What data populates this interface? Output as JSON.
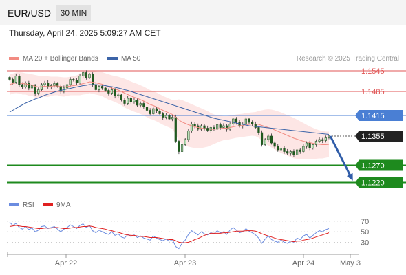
{
  "header": {
    "symbol": "EUR/USD",
    "timeframe": "30 MIN",
    "datetime": "Thursday, April 24, 2025 5:09:27 AM CET"
  },
  "legend": {
    "ma20_label": "MA 20 + Bollinger Bands",
    "ma50_label": "MA 50",
    "credit": "Research © 2025 Trading Central",
    "rsi_label": "RSI",
    "rsi_ma_label": "9MA"
  },
  "colors": {
    "ma20": "#f28b82",
    "band_fill": "#fde2e0",
    "ma50": "#3c64a8",
    "resistance": "#e05555",
    "pivot": "#4a7fd4",
    "support": "#1e8a1e",
    "current": "#222222",
    "rsi": "#6b8ce0",
    "rsi_ma": "#e02020",
    "arrow": "#2f5ca8"
  },
  "chart_data": [
    {
      "type": "candlestick",
      "price_range": [
        1.1175,
        1.1575
      ],
      "x_ticks": [
        "Apr 22",
        "Apr 23",
        "Apr 24",
        "May 3"
      ],
      "levels": [
        {
          "name": "resistance-2",
          "value": 1.1545,
          "label": "1.1545",
          "style": "resistance"
        },
        {
          "name": "resistance-1",
          "value": 1.1485,
          "label": "1.1485",
          "style": "resistance"
        },
        {
          "name": "pivot",
          "value": 1.1415,
          "label": "1.1415",
          "style": "pivot"
        },
        {
          "name": "current-price",
          "value": 1.1355,
          "label": "1.1355",
          "style": "current"
        },
        {
          "name": "support-1",
          "value": 1.127,
          "label": "1.1270",
          "style": "support"
        },
        {
          "name": "support-2",
          "value": 1.122,
          "label": "1.1220",
          "style": "support"
        }
      ],
      "close": [
        1.152,
        1.1512,
        1.153,
        1.1505,
        1.1498,
        1.151,
        1.1495,
        1.1502,
        1.148,
        1.149,
        1.1505,
        1.151,
        1.1498,
        1.1502,
        1.1508,
        1.15,
        1.1485,
        1.1495,
        1.1505,
        1.152,
        1.1518,
        1.151,
        1.153,
        1.154,
        1.1525,
        1.1535,
        1.1505,
        1.149,
        1.15,
        1.1495,
        1.1488,
        1.148,
        1.149,
        1.1472,
        1.1475,
        1.146,
        1.145,
        1.1465,
        1.1455,
        1.146,
        1.1445,
        1.145,
        1.144,
        1.143,
        1.142,
        1.1435,
        1.1428,
        1.142,
        1.141,
        1.1415,
        1.1405,
        1.141,
        1.134,
        1.131,
        1.133,
        1.1345,
        1.137,
        1.139,
        1.1385,
        1.1375,
        1.1385,
        1.1378,
        1.1372,
        1.138,
        1.1375,
        1.1388,
        1.138,
        1.1385,
        1.1375,
        1.139,
        1.1405,
        1.1395,
        1.1385,
        1.139,
        1.1405,
        1.1395,
        1.139,
        1.138,
        1.1365,
        1.133,
        1.1345,
        1.1355,
        1.1335,
        1.1325,
        1.1315,
        1.132,
        1.131,
        1.1305,
        1.131,
        1.13,
        1.1315,
        1.131,
        1.1325,
        1.1335,
        1.132,
        1.133,
        1.134,
        1.1345,
        1.1342,
        1.135,
        1.1355
      ],
      "ma20": [
        1.1505,
        1.1508,
        1.151,
        1.151,
        1.1508,
        1.1507,
        1.1505,
        1.1504,
        1.15,
        1.1498,
        1.1499,
        1.15,
        1.1499,
        1.15,
        1.1501,
        1.1501,
        1.1499,
        1.1498,
        1.1499,
        1.1501,
        1.1502,
        1.1503,
        1.1505,
        1.1508,
        1.151,
        1.1513,
        1.1512,
        1.151,
        1.1508,
        1.1506,
        1.1502,
        1.1498,
        1.1495,
        1.1492,
        1.1489,
        1.1485,
        1.148,
        1.1476,
        1.1472,
        1.1468,
        1.1465,
        1.1461,
        1.1457,
        1.1452,
        1.1447,
        1.1444,
        1.144,
        1.1435,
        1.143,
        1.1426,
        1.1422,
        1.1418,
        1.141,
        1.1402,
        1.1396,
        1.1392,
        1.1388,
        1.1385,
        1.1382,
        1.138,
        1.1378,
        1.1377,
        1.1376,
        1.1375,
        1.1375,
        1.1376,
        1.1377,
        1.1378,
        1.1378,
        1.138,
        1.1382,
        1.1384,
        1.1385,
        1.1386,
        1.1388,
        1.1389,
        1.139,
        1.139,
        1.1389,
        1.1386,
        1.1383,
        1.138,
        1.1377,
        1.1373,
        1.1369,
        1.1365,
        1.1361,
        1.1357,
        1.1353,
        1.1349,
        1.1346,
        1.1343,
        1.134,
        1.1338,
        1.1336,
        1.1334,
        1.1332,
        1.1331,
        1.133,
        1.133,
        1.1331
      ],
      "bb_upper": [
        1.1535,
        1.1537,
        1.154,
        1.1541,
        1.154,
        1.1538,
        1.1537,
        1.1535,
        1.1533,
        1.1531,
        1.153,
        1.153,
        1.1529,
        1.1528,
        1.1528,
        1.1528,
        1.1527,
        1.1526,
        1.1526,
        1.1528,
        1.153,
        1.1532,
        1.1536,
        1.154,
        1.1543,
        1.1546,
        1.1546,
        1.1544,
        1.1542,
        1.1541,
        1.1538,
        1.1535,
        1.1532,
        1.153,
        1.1528,
        1.1525,
        1.1522,
        1.1518,
        1.1514,
        1.151,
        1.1507,
        1.1503,
        1.1499,
        1.1494,
        1.1489,
        1.1486,
        1.1482,
        1.1477,
        1.1472,
        1.1468,
        1.1464,
        1.146,
        1.146,
        1.1462,
        1.146,
        1.1456,
        1.1452,
        1.1448,
        1.1444,
        1.144,
        1.1436,
        1.1432,
        1.1428,
        1.1422,
        1.1418,
        1.1416,
        1.1414,
        1.1413,
        1.1413,
        1.1414,
        1.1416,
        1.1418,
        1.1419,
        1.142,
        1.1422,
        1.1423,
        1.1424,
        1.1425,
        1.1428,
        1.143,
        1.1432,
        1.1433,
        1.1432,
        1.143,
        1.1427,
        1.1424,
        1.142,
        1.1416,
        1.1412,
        1.1408,
        1.1403,
        1.1398,
        1.1393,
        1.1388,
        1.1383,
        1.1379,
        1.1375,
        1.1372,
        1.137,
        1.1368,
        1.1368
      ],
      "bb_lower": [
        1.1475,
        1.1479,
        1.148,
        1.1479,
        1.1476,
        1.1476,
        1.1473,
        1.1473,
        1.1467,
        1.1465,
        1.1468,
        1.147,
        1.1469,
        1.1472,
        1.1474,
        1.1474,
        1.1471,
        1.147,
        1.1472,
        1.1474,
        1.1474,
        1.1474,
        1.1474,
        1.1476,
        1.1477,
        1.148,
        1.1478,
        1.1476,
        1.1474,
        1.1471,
        1.1466,
        1.1461,
        1.1458,
        1.1454,
        1.145,
        1.1445,
        1.1438,
        1.1434,
        1.143,
        1.1426,
        1.1423,
        1.1419,
        1.1415,
        1.141,
        1.1405,
        1.1402,
        1.1398,
        1.1393,
        1.1388,
        1.1384,
        1.138,
        1.1376,
        1.136,
        1.1342,
        1.1332,
        1.1328,
        1.1324,
        1.1322,
        1.132,
        1.132,
        1.132,
        1.1322,
        1.1324,
        1.1328,
        1.1332,
        1.1336,
        1.134,
        1.1343,
        1.1343,
        1.1346,
        1.1348,
        1.135,
        1.1351,
        1.1352,
        1.1354,
        1.1355,
        1.1356,
        1.1355,
        1.135,
        1.1342,
        1.1334,
        1.1327,
        1.1322,
        1.1316,
        1.1311,
        1.1306,
        1.1302,
        1.1298,
        1.1294,
        1.129,
        1.1289,
        1.1288,
        1.1287,
        1.1288,
        1.1289,
        1.1289,
        1.1289,
        1.129,
        1.129,
        1.1292,
        1.1294
      ],
      "ma50": [
        1.1425,
        1.143,
        1.1436,
        1.1441,
        1.1446,
        1.1451,
        1.1455,
        1.1459,
        1.1463,
        1.1466,
        1.147,
        1.1474,
        1.1477,
        1.148,
        1.1483,
        1.1486,
        1.1488,
        1.149,
        1.1492,
        1.1494,
        1.1496,
        1.1498,
        1.15,
        1.1502,
        1.1503,
        1.1505,
        1.1505,
        1.1505,
        1.1504,
        1.1503,
        1.1502,
        1.15,
        1.1499,
        1.1497,
        1.1495,
        1.1493,
        1.149,
        1.1488,
        1.1485,
        1.1482,
        1.1479,
        1.1476,
        1.1473,
        1.147,
        1.1467,
        1.1464,
        1.1461,
        1.1458,
        1.1455,
        1.1452,
        1.1449,
        1.1446,
        1.1443,
        1.144,
        1.1437,
        1.1434,
        1.1431,
        1.1428,
        1.1425,
        1.1422,
        1.1419,
        1.1416,
        1.1413,
        1.141,
        1.1407,
        1.1405,
        1.1403,
        1.1401,
        1.1399,
        1.1397,
        1.1395,
        1.1393,
        1.1391,
        1.1389,
        1.1387,
        1.1385,
        1.1384,
        1.1383,
        1.1382,
        1.1381,
        1.138,
        1.1379,
        1.1378,
        1.1377,
        1.1376,
        1.1375,
        1.1374,
        1.1373,
        1.1372,
        1.1371,
        1.137,
        1.1369,
        1.1368,
        1.1367,
        1.1366,
        1.1365,
        1.1364,
        1.1363,
        1.1362,
        1.1361,
        1.136
      ],
      "forecast": {
        "from": 1.1355,
        "to": 1.122
      }
    },
    {
      "type": "line",
      "name": "RSI",
      "y_range": [
        20,
        75
      ],
      "y_ticks": [
        70,
        50,
        30
      ],
      "rsi": [
        68,
        62,
        66,
        58,
        55,
        60,
        54,
        57,
        50,
        53,
        60,
        61,
        56,
        58,
        60,
        55,
        50,
        55,
        58,
        63,
        60,
        56,
        62,
        65,
        58,
        62,
        52,
        48,
        53,
        50,
        47,
        45,
        50,
        43,
        46,
        40,
        38,
        45,
        41,
        44,
        39,
        42,
        38,
        36,
        34,
        42,
        38,
        35,
        33,
        36,
        32,
        35,
        22,
        18,
        28,
        34,
        45,
        52,
        48,
        44,
        50,
        46,
        44,
        48,
        46,
        52,
        48,
        50,
        45,
        53,
        58,
        53,
        48,
        50,
        56,
        51,
        48,
        44,
        38,
        28,
        36,
        42,
        35,
        32,
        30,
        34,
        30,
        28,
        32,
        30,
        38,
        35,
        42,
        45,
        38,
        43,
        48,
        52,
        50,
        54,
        56
      ],
      "rsi_ma": [
        60,
        61,
        62,
        61,
        60,
        60,
        59,
        58,
        57,
        56,
        56,
        57,
        57,
        57,
        58,
        58,
        57,
        56,
        56,
        57,
        58,
        58,
        59,
        60,
        60,
        61,
        60,
        58,
        57,
        56,
        55,
        53,
        52,
        50,
        49,
        47,
        45,
        44,
        43,
        43,
        42,
        41,
        41,
        40,
        39,
        39,
        39,
        38,
        37,
        36,
        35,
        35,
        33,
        30,
        29,
        29,
        30,
        32,
        35,
        37,
        40,
        43,
        45,
        47,
        47,
        47,
        47,
        48,
        48,
        49,
        50,
        51,
        51,
        51,
        52,
        52,
        52,
        51,
        49,
        46,
        44,
        42,
        40,
        38,
        36,
        35,
        34,
        33,
        32,
        31,
        32,
        32,
        34,
        35,
        36,
        38,
        40,
        42,
        44,
        46,
        48
      ]
    }
  ]
}
